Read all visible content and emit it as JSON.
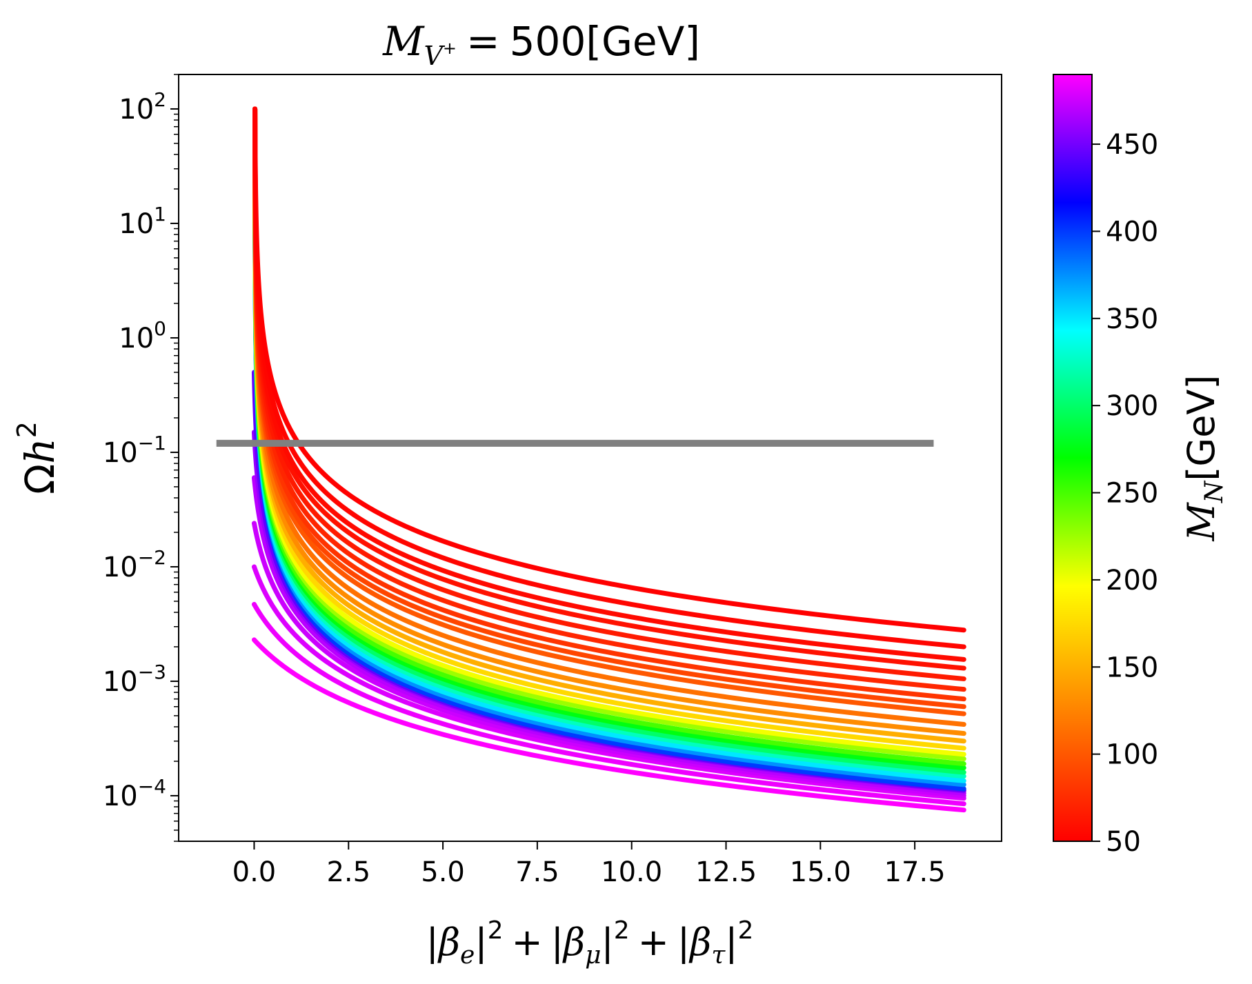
{
  "chart_data": {
    "type": "line",
    "title_parts": {
      "symbol": "M",
      "subscript_base": "V",
      "subscript_sup": "+",
      "equals": "=",
      "value": "500[GeV]"
    },
    "xlabel_parts": {
      "bar": "|",
      "beta": "β",
      "subs": [
        "e",
        "μ",
        "τ"
      ],
      "sup": "2",
      "plus": "+"
    },
    "ylabel_parts": {
      "omega": "Ω",
      "h": "h",
      "sup": "2"
    },
    "colorbar_label_parts": {
      "symbol": "M",
      "sub": "N",
      "unit": "[GeV]"
    },
    "x_scale": "linear",
    "y_scale": "log",
    "xlim": [
      -2.0,
      19.8
    ],
    "ylim": [
      4e-05,
      200
    ],
    "x_ticks": [
      0.0,
      2.5,
      5.0,
      7.5,
      10.0,
      12.5,
      15.0,
      17.5
    ],
    "x_tick_labels": [
      "0.0",
      "2.5",
      "5.0",
      "7.5",
      "10.0",
      "12.5",
      "15.0",
      "17.5"
    ],
    "y_ticks": [
      0.0001,
      0.001,
      0.01,
      0.1,
      1,
      10,
      100
    ],
    "y_tick_label_base": "10",
    "y_tick_label_exponents": [
      "−4",
      "−3",
      "−2",
      "−1",
      "0",
      "1",
      "2"
    ],
    "reference_line": {
      "y": 0.12,
      "x_range": [
        -1.0,
        18.0
      ],
      "color": "#808080"
    },
    "series_description": "Family of curves Omega h^2 vs sum |beta|^2, one per M_N value; curves start near x=0 at high values and fall with increasing coupling",
    "curve_x_range": [
      0.0,
      18.8
    ],
    "curve_params": [
      {
        "m_n": 490,
        "y_at_x0": 0.0023,
        "y_end": 7.5e-05
      },
      {
        "m_n": 485,
        "y_at_x0": 0.0047,
        "y_end": 8.5e-05
      },
      {
        "m_n": 480,
        "y_at_x0": 0.01,
        "y_end": 9.5e-05
      },
      {
        "m_n": 475,
        "y_at_x0": 0.024,
        "y_end": 0.0001
      },
      {
        "m_n": 470,
        "y_at_x0": 0.06,
        "y_end": 0.000105
      },
      {
        "m_n": 460,
        "y_at_x0": 0.15,
        "y_end": 0.00011
      },
      {
        "m_n": 445,
        "y_at_x0": 0.5,
        "y_end": 0.000112
      },
      {
        "m_n": 400,
        "y_at_x0": 100,
        "y_end": 0.000115
      },
      {
        "m_n": 375,
        "y_at_x0": 100,
        "y_end": 0.000125
      },
      {
        "m_n": 350,
        "y_at_x0": 100,
        "y_end": 0.000135
      },
      {
        "m_n": 325,
        "y_at_x0": 100,
        "y_end": 0.000148
      },
      {
        "m_n": 300,
        "y_at_x0": 100,
        "y_end": 0.00016
      },
      {
        "m_n": 275,
        "y_at_x0": 100,
        "y_end": 0.000175
      },
      {
        "m_n": 250,
        "y_at_x0": 100,
        "y_end": 0.00019
      },
      {
        "m_n": 225,
        "y_at_x0": 100,
        "y_end": 0.00021
      },
      {
        "m_n": 200,
        "y_at_x0": 100,
        "y_end": 0.00023
      },
      {
        "m_n": 175,
        "y_at_x0": 100,
        "y_end": 0.00026
      },
      {
        "m_n": 150,
        "y_at_x0": 100,
        "y_end": 0.0003
      },
      {
        "m_n": 130,
        "y_at_x0": 100,
        "y_end": 0.00035
      },
      {
        "m_n": 115,
        "y_at_x0": 100,
        "y_end": 0.00042
      },
      {
        "m_n": 100,
        "y_at_x0": 100,
        "y_end": 0.00052
      },
      {
        "m_n": 90,
        "y_at_x0": 100,
        "y_end": 0.0006
      },
      {
        "m_n": 80,
        "y_at_x0": 100,
        "y_end": 0.0007
      },
      {
        "m_n": 72,
        "y_at_x0": 100,
        "y_end": 0.00085
      },
      {
        "m_n": 65,
        "y_at_x0": 100,
        "y_end": 0.00105
      },
      {
        "m_n": 60,
        "y_at_x0": 100,
        "y_end": 0.0013
      },
      {
        "m_n": 56,
        "y_at_x0": 100,
        "y_end": 0.00155
      },
      {
        "m_n": 53,
        "y_at_x0": 100,
        "y_end": 0.002
      },
      {
        "m_n": 50,
        "y_at_x0": 100,
        "y_end": 0.0028
      }
    ],
    "colorbar": {
      "min": 50,
      "max": 490,
      "ticks": [
        50,
        100,
        150,
        200,
        250,
        300,
        350,
        400,
        450
      ],
      "tick_labels": [
        "50",
        "100",
        "150",
        "200",
        "250",
        "300",
        "350",
        "400",
        "450"
      ],
      "colormap": "gist_rainbow_r",
      "color_stops": [
        "#ff0000",
        "#ff8000",
        "#ffff00",
        "#00ff00",
        "#00ffff",
        "#0000ff",
        "#ff00ff"
      ]
    }
  }
}
